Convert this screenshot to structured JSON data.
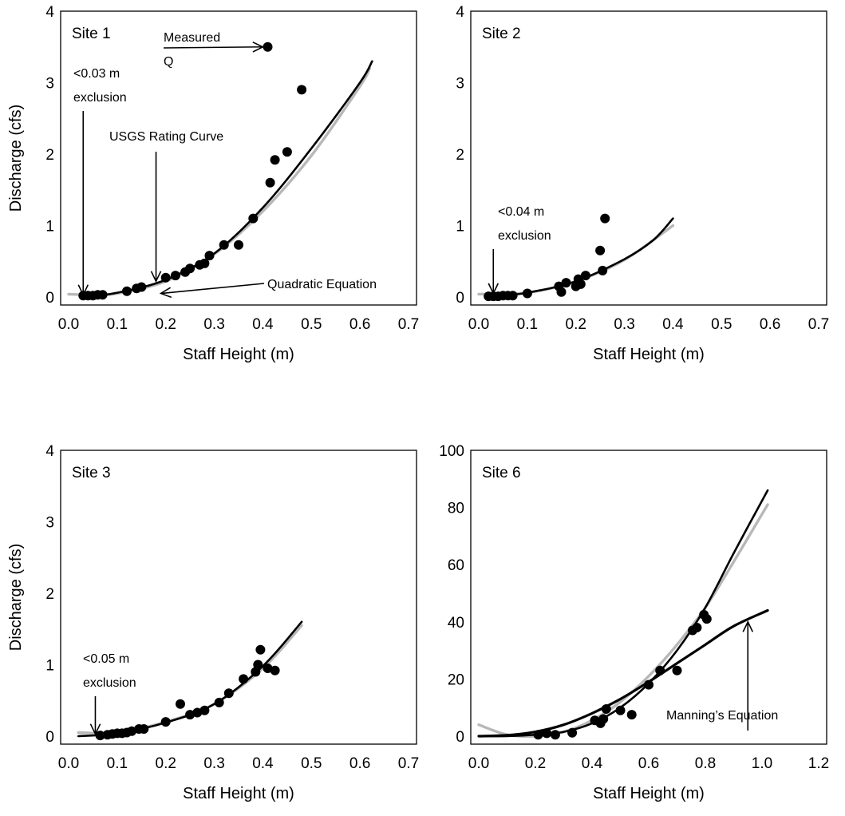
{
  "chart_data": [
    {
      "type": "scatter",
      "site_label": "Site 1",
      "xlabel": "Staff Height (m)",
      "ylabel": "Discharge (cfs)",
      "xlim": [
        0,
        0.7
      ],
      "ylim": [
        0,
        4
      ],
      "xticks": [
        "0.0",
        "0.1",
        "0.2",
        "0.3",
        "0.4",
        "0.5",
        "0.6",
        "0.7"
      ],
      "yticks": [
        "0",
        "1",
        "2",
        "3",
        "4"
      ],
      "series": [
        {
          "name": "Measured Q",
          "points": [
            [
              0.03,
              0.02
            ],
            [
              0.04,
              0.02
            ],
            [
              0.05,
              0.02
            ],
            [
              0.06,
              0.03
            ],
            [
              0.07,
              0.03
            ],
            [
              0.12,
              0.08
            ],
            [
              0.14,
              0.12
            ],
            [
              0.15,
              0.14
            ],
            [
              0.2,
              0.27
            ],
            [
              0.22,
              0.3
            ],
            [
              0.24,
              0.35
            ],
            [
              0.25,
              0.4
            ],
            [
              0.27,
              0.45
            ],
            [
              0.28,
              0.47
            ],
            [
              0.29,
              0.58
            ],
            [
              0.32,
              0.73
            ],
            [
              0.35,
              0.73
            ],
            [
              0.38,
              1.1
            ],
            [
              0.41,
              3.5
            ],
            [
              0.415,
              1.6
            ],
            [
              0.425,
              1.92
            ],
            [
              0.45,
              2.03
            ],
            [
              0.48,
              2.9
            ]
          ]
        },
        {
          "name": "USGS Rating Curve",
          "points": [
            [
              0.03,
              0.0
            ],
            [
              0.1,
              0.06
            ],
            [
              0.2,
              0.24
            ],
            [
              0.3,
              0.61
            ],
            [
              0.4,
              1.25
            ],
            [
              0.5,
              2.08
            ],
            [
              0.6,
              3.0
            ],
            [
              0.625,
              3.3
            ]
          ]
        },
        {
          "name": "Quadratic Equation",
          "points": [
            [
              0.0,
              0.04
            ],
            [
              0.05,
              0.03
            ],
            [
              0.1,
              0.05
            ],
            [
              0.2,
              0.22
            ],
            [
              0.3,
              0.6
            ],
            [
              0.4,
              1.2
            ],
            [
              0.5,
              1.98
            ],
            [
              0.6,
              2.95
            ],
            [
              0.62,
              3.2
            ]
          ]
        }
      ],
      "annotations": [
        {
          "lines": [
            "Measured",
            "Q"
          ],
          "arrow_to": [
            0.4,
            3.5
          ]
        },
        {
          "lines": [
            "USGS Rating Curve"
          ],
          "arrow_to": [
            0.18,
            0.22
          ]
        },
        {
          "lines": [
            "<0.03 m",
            "exclusion"
          ],
          "arrow_to": [
            0.03,
            0.03
          ]
        },
        {
          "lines": [
            "Quadratic Equation"
          ],
          "arrow_to": [
            0.19,
            0.05
          ]
        }
      ]
    },
    {
      "type": "scatter",
      "site_label": "Site 2",
      "xlabel": "Staff Height (m)",
      "ylabel": "",
      "xlim": [
        0,
        0.7
      ],
      "ylim": [
        0,
        4
      ],
      "xticks": [
        "0.0",
        "0.1",
        "0.2",
        "0.3",
        "0.4",
        "0.5",
        "0.6",
        "0.7"
      ],
      "yticks": [
        "0",
        "1",
        "2",
        "3",
        "4"
      ],
      "series": [
        {
          "name": "Measured Q",
          "points": [
            [
              0.02,
              0.01
            ],
            [
              0.03,
              0.01
            ],
            [
              0.04,
              0.01
            ],
            [
              0.05,
              0.02
            ],
            [
              0.06,
              0.02
            ],
            [
              0.07,
              0.02
            ],
            [
              0.1,
              0.05
            ],
            [
              0.165,
              0.15
            ],
            [
              0.17,
              0.07
            ],
            [
              0.18,
              0.2
            ],
            [
              0.2,
              0.15
            ],
            [
              0.205,
              0.25
            ],
            [
              0.21,
              0.18
            ],
            [
              0.22,
              0.3
            ],
            [
              0.25,
              0.65
            ],
            [
              0.255,
              0.37
            ],
            [
              0.26,
              1.1
            ]
          ]
        },
        {
          "name": "USGS Rating Curve",
          "points": [
            [
              0.02,
              0.0
            ],
            [
              0.1,
              0.06
            ],
            [
              0.2,
              0.22
            ],
            [
              0.3,
              0.53
            ],
            [
              0.36,
              0.8
            ],
            [
              0.4,
              1.1
            ]
          ]
        },
        {
          "name": "Quadratic Equation",
          "points": [
            [
              0.0,
              0.04
            ],
            [
              0.1,
              0.06
            ],
            [
              0.2,
              0.22
            ],
            [
              0.3,
              0.52
            ],
            [
              0.4,
              1.0
            ]
          ]
        }
      ],
      "annotations": [
        {
          "lines": [
            "<0.04 m",
            "exclusion"
          ],
          "arrow_to": [
            0.03,
            0.05
          ]
        }
      ]
    },
    {
      "type": "scatter",
      "site_label": "Site 3",
      "xlabel": "Staff Height (m)",
      "ylabel": "Discharge (cfs)",
      "xlim": [
        0,
        0.7
      ],
      "ylim": [
        0,
        4
      ],
      "xticks": [
        "0.0",
        "0.1",
        "0.2",
        "0.3",
        "0.4",
        "0.5",
        "0.6",
        "0.7"
      ],
      "yticks": [
        "0",
        "1",
        "2",
        "3",
        "4"
      ],
      "series": [
        {
          "name": "Measured Q",
          "points": [
            [
              0.065,
              0.01
            ],
            [
              0.08,
              0.02
            ],
            [
              0.09,
              0.03
            ],
            [
              0.1,
              0.04
            ],
            [
              0.11,
              0.04
            ],
            [
              0.12,
              0.05
            ],
            [
              0.13,
              0.07
            ],
            [
              0.145,
              0.1
            ],
            [
              0.155,
              0.1
            ],
            [
              0.2,
              0.2
            ],
            [
              0.23,
              0.45
            ],
            [
              0.25,
              0.3
            ],
            [
              0.265,
              0.33
            ],
            [
              0.28,
              0.36
            ],
            [
              0.31,
              0.47
            ],
            [
              0.33,
              0.6
            ],
            [
              0.36,
              0.8
            ],
            [
              0.385,
              0.9
            ],
            [
              0.39,
              1.0
            ],
            [
              0.395,
              1.21
            ],
            [
              0.41,
              0.95
            ],
            [
              0.425,
              0.92
            ]
          ]
        },
        {
          "name": "USGS Rating Curve",
          "points": [
            [
              0.02,
              0.0
            ],
            [
              0.1,
              0.04
            ],
            [
              0.2,
              0.19
            ],
            [
              0.3,
              0.45
            ],
            [
              0.4,
              0.98
            ],
            [
              0.48,
              1.6
            ]
          ]
        },
        {
          "name": "Quadratic Equation",
          "points": [
            [
              0.02,
              0.05
            ],
            [
              0.1,
              0.05
            ],
            [
              0.2,
              0.2
            ],
            [
              0.3,
              0.45
            ],
            [
              0.4,
              0.95
            ],
            [
              0.48,
              1.55
            ]
          ]
        }
      ],
      "annotations": [
        {
          "lines": [
            "<0.05 m",
            "exclusion"
          ],
          "arrow_to": [
            0.055,
            0.03
          ]
        }
      ]
    },
    {
      "type": "scatter",
      "site_label": "Site 6",
      "xlabel": "Staff Height (m)",
      "ylabel": "",
      "xlim": [
        0,
        1.2
      ],
      "ylim": [
        0,
        100
      ],
      "xticks": [
        "0.0",
        "0.2",
        "0.4",
        "0.6",
        "0.8",
        "1.0",
        "1.2"
      ],
      "yticks": [
        "0",
        "20",
        "40",
        "60",
        "80",
        "100"
      ],
      "series": [
        {
          "name": "Measured Q",
          "points": [
            [
              0.21,
              0.5
            ],
            [
              0.24,
              1.0
            ],
            [
              0.27,
              0.5
            ],
            [
              0.33,
              1.2
            ],
            [
              0.41,
              5.5
            ],
            [
              0.43,
              4.5
            ],
            [
              0.44,
              6.0
            ],
            [
              0.45,
              9.5
            ],
            [
              0.5,
              9.0
            ],
            [
              0.54,
              7.5
            ],
            [
              0.6,
              18.0
            ],
            [
              0.64,
              23.0
            ],
            [
              0.7,
              23.0
            ],
            [
              0.755,
              37.0
            ],
            [
              0.77,
              38.0
            ],
            [
              0.795,
              42.5
            ],
            [
              0.805,
              41.0
            ]
          ]
        },
        {
          "name": "USGS Rating Curve",
          "points": [
            [
              0.0,
              0.0
            ],
            [
              0.1,
              0.0
            ],
            [
              0.2,
              0.5
            ],
            [
              0.3,
              1.5
            ],
            [
              0.4,
              4.5
            ],
            [
              0.5,
              10.0
            ],
            [
              0.6,
              18.5
            ],
            [
              0.7,
              30.0
            ],
            [
              0.8,
              45.0
            ],
            [
              0.9,
              64.0
            ],
            [
              1.02,
              86.0
            ]
          ]
        },
        {
          "name": "Quadratic Equation",
          "points": [
            [
              0.0,
              4.0
            ],
            [
              0.1,
              0.5
            ],
            [
              0.2,
              0.0
            ],
            [
              0.3,
              1.5
            ],
            [
              0.4,
              5.5
            ],
            [
              0.5,
              12.0
            ],
            [
              0.6,
              21.0
            ],
            [
              0.7,
              32.0
            ],
            [
              0.8,
              45.0
            ],
            [
              0.9,
              61.0
            ],
            [
              1.02,
              81.0
            ]
          ]
        },
        {
          "name": "Manning's Equation",
          "points": [
            [
              0.0,
              0.0
            ],
            [
              0.1,
              0.3
            ],
            [
              0.2,
              1.5
            ],
            [
              0.3,
              4.0
            ],
            [
              0.4,
              8.0
            ],
            [
              0.5,
              13.0
            ],
            [
              0.6,
              19.0
            ],
            [
              0.7,
              25.5
            ],
            [
              0.8,
              32.0
            ],
            [
              0.9,
              38.5
            ],
            [
              1.02,
              44.0
            ]
          ]
        }
      ],
      "annotations": [
        {
          "lines": [
            "Manning’s Equation"
          ],
          "arrow_to": [
            0.95,
            40.0
          ]
        }
      ]
    }
  ]
}
